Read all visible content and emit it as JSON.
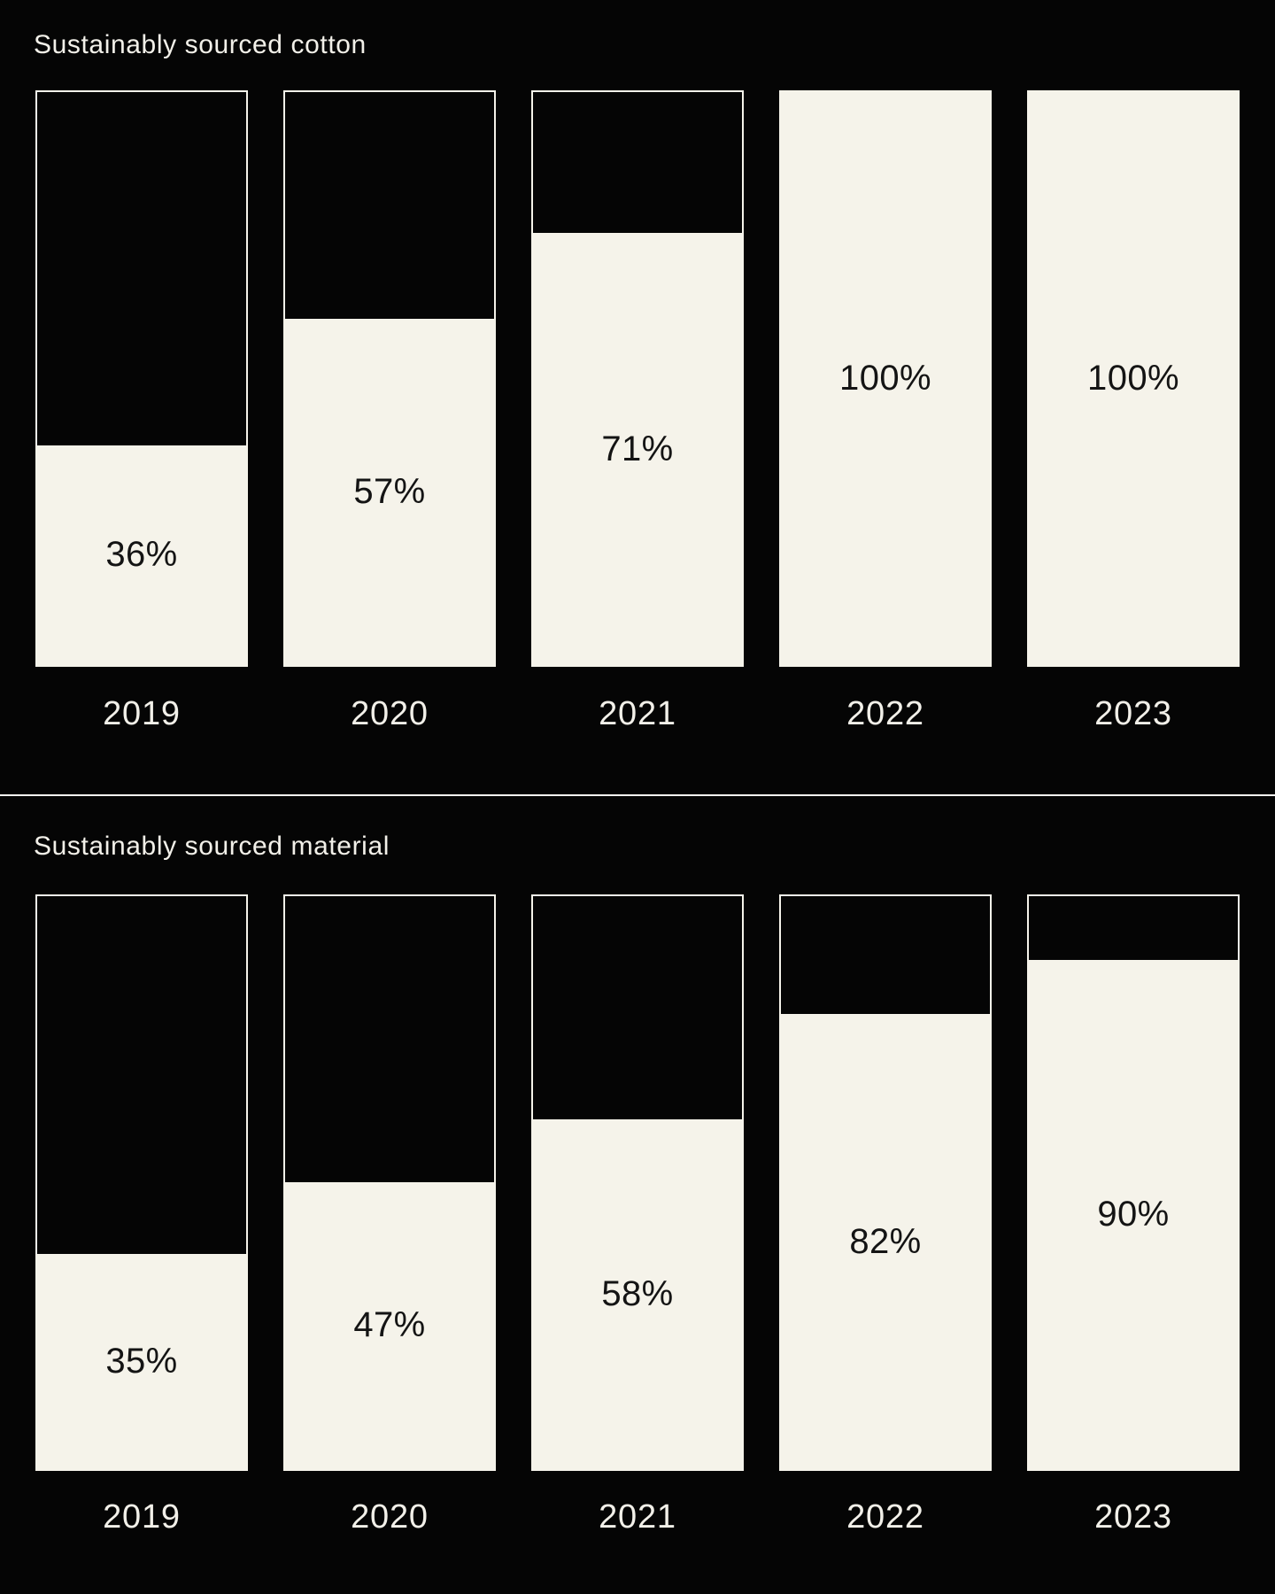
{
  "colors": {
    "background": "#050505",
    "bar_fill": "#f5f3ea",
    "bar_outline": "#f5f3ea",
    "title_text": "#f2f0e9",
    "year_text": "#f2f0e9",
    "value_text": "#141414",
    "divider": "#fbfaf5"
  },
  "chart_data": [
    {
      "type": "bar",
      "title": "Sustainably sourced cotton",
      "categories": [
        "2019",
        "2020",
        "2021",
        "2022",
        "2023"
      ],
      "values": [
        36,
        57,
        71,
        100,
        100
      ],
      "value_labels": [
        "36%",
        "57%",
        "71%",
        "100%",
        "100%"
      ],
      "unit": "%",
      "ylim": [
        0,
        100
      ],
      "xlabel": "",
      "ylabel": "",
      "legend": "none",
      "grid": false,
      "style": "outlined hollow bars filled from bottom with cream; value label centered inside filled area",
      "rendered_fill_pct": [
        38.4,
        60.5,
        75.4,
        100,
        100
      ]
    },
    {
      "type": "bar",
      "title": "Sustainably sourced material",
      "categories": [
        "2019",
        "2020",
        "2021",
        "2022",
        "2023"
      ],
      "values": [
        35,
        47,
        58,
        82,
        90
      ],
      "value_labels": [
        "35%",
        "47%",
        "58%",
        "82%",
        "90%"
      ],
      "unit": "%",
      "ylim": [
        0,
        100
      ],
      "xlabel": "",
      "ylabel": "",
      "legend": "none",
      "grid": false,
      "style": "outlined hollow bars filled from bottom with cream; value label centered inside filled area",
      "rendered_fill_pct": [
        37.5,
        50.1,
        61.1,
        79.4,
        88.8
      ]
    }
  ]
}
